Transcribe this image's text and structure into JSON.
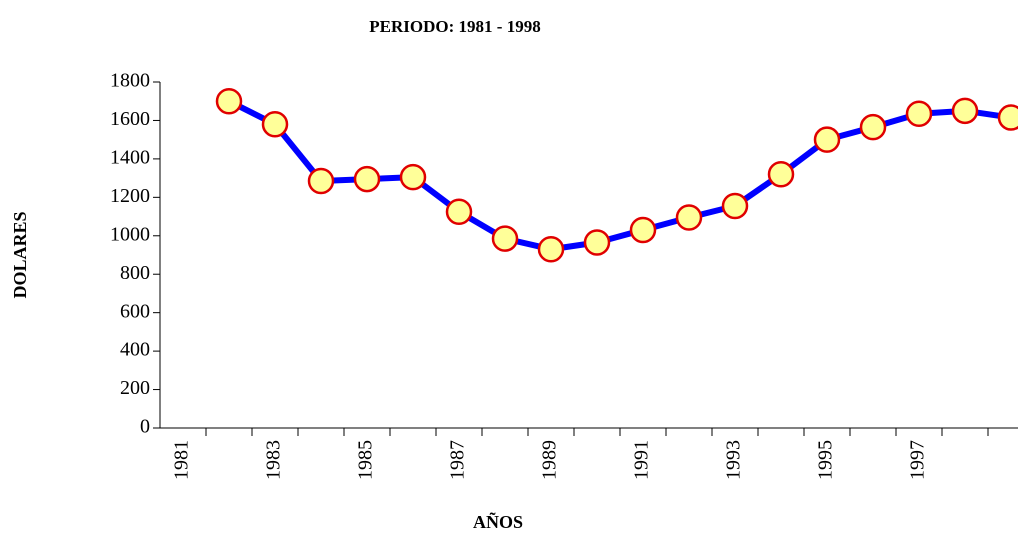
{
  "chart_data": {
    "type": "line",
    "title": "PERIODO: 1981 - 1998",
    "x_label": "AÑOS",
    "y_label": "DOLARES",
    "categories": [
      "1981",
      null,
      "1983",
      null,
      "1985",
      null,
      "1987",
      null,
      "1989",
      null,
      "1991",
      null,
      "1993",
      null,
      "1995",
      null,
      "1997",
      null,
      null
    ],
    "series": [
      {
        "name": "DOLARES",
        "color": "#0000ff",
        "marker_fill": "#ffff99",
        "marker_stroke": "#e00000",
        "values": [
          null,
          1700,
          1580,
          1285,
          1295,
          1305,
          1125,
          985,
          930,
          965,
          1030,
          1095,
          1155,
          1320,
          1500,
          1565,
          1635,
          1650,
          1615
        ]
      }
    ],
    "ylim": [
      0,
      1800
    ],
    "yticks": [
      0,
      200,
      400,
      600,
      800,
      1000,
      1200,
      1400,
      1600,
      1800
    ],
    "grid": false
  }
}
